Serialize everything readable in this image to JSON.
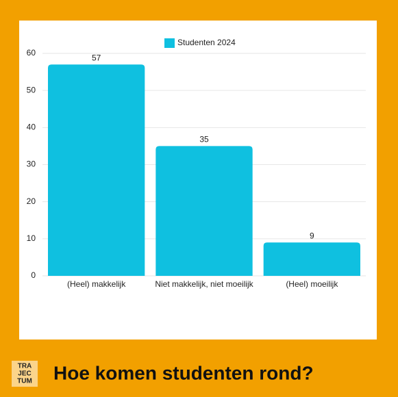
{
  "chart_data": {
    "type": "bar",
    "title": "Hoe komen studenten rond?",
    "categories": [
      "(Heel) makkelijk",
      "Niet makkelijk, niet moeilijk",
      "(Heel) moeilijk"
    ],
    "series": [
      {
        "name": "Studenten 2024",
        "color": "#0fc0e0",
        "values": [
          57,
          35,
          9
        ]
      }
    ],
    "ylim": [
      0,
      60
    ],
    "yticks": [
      0,
      10,
      20,
      30,
      40,
      50,
      60
    ],
    "grid": true,
    "legend": "top"
  },
  "logo": [
    "TRA",
    "JEC",
    "TUM"
  ]
}
